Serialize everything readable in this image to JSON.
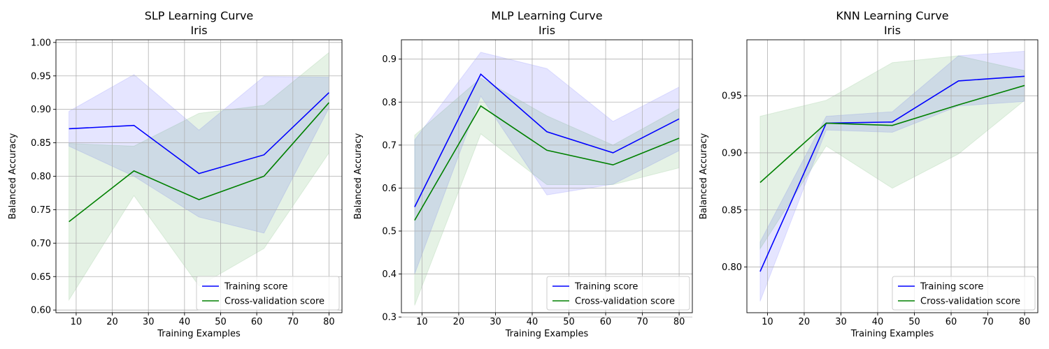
{
  "chart_data": [
    {
      "type": "line",
      "title": "SLP Learning Curve\nIris",
      "xlabel": "Training Examples",
      "ylabel": "Balanced Accuracy",
      "x": [
        8,
        26,
        44,
        62,
        80
      ],
      "xlim": [
        4.4,
        83.6
      ],
      "ylim": [
        0.596,
        1.004
      ],
      "xticks": [
        10,
        20,
        30,
        40,
        50,
        60,
        70,
        80
      ],
      "yticks": [
        0.6,
        0.65,
        0.7,
        0.75,
        0.8,
        0.85,
        0.9,
        0.95,
        1.0
      ],
      "ytick_format": 2,
      "grid": true,
      "legend_position": "lower-right",
      "series": [
        {
          "name": "Training score",
          "color": "#0000ff",
          "values": [
            0.871,
            0.876,
            0.804,
            0.832,
            0.925
          ],
          "band_upper": [
            0.897,
            0.952,
            0.869,
            0.949,
            0.948
          ],
          "band_lower": [
            0.845,
            0.8,
            0.739,
            0.715,
            0.902
          ]
        },
        {
          "name": "Cross-validation score",
          "color": "#008000",
          "values": [
            0.732,
            0.808,
            0.765,
            0.8,
            0.91
          ],
          "band_upper": [
            0.849,
            0.845,
            0.894,
            0.906,
            0.985
          ],
          "band_lower": [
            0.615,
            0.771,
            0.636,
            0.692,
            0.835
          ]
        }
      ]
    },
    {
      "type": "line",
      "title": "MLP Learning Curve\nIris",
      "xlabel": "Training Examples",
      "ylabel": "Balanced Accuracy",
      "x": [
        8,
        26,
        44,
        62,
        80
      ],
      "xlim": [
        4.4,
        83.6
      ],
      "ylim": [
        0.31,
        0.945
      ],
      "xticks": [
        10,
        20,
        30,
        40,
        50,
        60,
        70,
        80
      ],
      "yticks": [
        0.3,
        0.4,
        0.5,
        0.6,
        0.7,
        0.8,
        0.9
      ],
      "ytick_format": 1,
      "grid": true,
      "legend_position": "lower-right",
      "series": [
        {
          "name": "Training score",
          "color": "#0000ff",
          "values": [
            0.556,
            0.865,
            0.731,
            0.682,
            0.761
          ],
          "band_upper": [
            0.712,
            0.916,
            0.878,
            0.755,
            0.835
          ],
          "band_lower": [
            0.4,
            0.814,
            0.584,
            0.609,
            0.687
          ]
        },
        {
          "name": "Cross-validation score",
          "color": "#008000",
          "values": [
            0.525,
            0.791,
            0.688,
            0.654,
            0.716
          ],
          "band_upper": [
            0.723,
            0.856,
            0.768,
            0.7,
            0.785
          ],
          "band_lower": [
            0.327,
            0.726,
            0.608,
            0.608,
            0.647
          ]
        }
      ]
    },
    {
      "type": "line",
      "title": "KNN Learning Curve\nIris",
      "xlabel": "Training Examples",
      "ylabel": "Balanced Accuracy",
      "x": [
        8,
        26,
        44,
        62,
        80
      ],
      "xlim": [
        4.4,
        83.6
      ],
      "ylim": [
        0.76,
        0.999
      ],
      "xticks": [
        10,
        20,
        30,
        40,
        50,
        60,
        70,
        80
      ],
      "yticks": [
        0.8,
        0.85,
        0.9,
        0.95
      ],
      "ytick_format": 2,
      "grid": true,
      "legend_position": "lower-right",
      "series": [
        {
          "name": "Training score",
          "color": "#0000ff",
          "values": [
            0.796,
            0.926,
            0.927,
            0.963,
            0.967
          ],
          "band_upper": [
            0.822,
            0.932,
            0.936,
            0.985,
            0.989
          ],
          "band_lower": [
            0.77,
            0.92,
            0.918,
            0.941,
            0.945
          ]
        },
        {
          "name": "Cross-validation score",
          "color": "#008000",
          "values": [
            0.874,
            0.926,
            0.924,
            0.942,
            0.959
          ],
          "band_upper": [
            0.932,
            0.946,
            0.979,
            0.985,
            0.972
          ],
          "band_lower": [
            0.816,
            0.906,
            0.869,
            0.899,
            0.946
          ]
        }
      ]
    }
  ]
}
